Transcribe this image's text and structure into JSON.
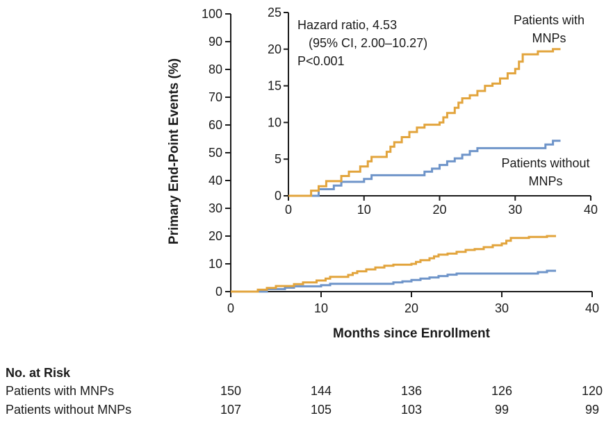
{
  "chart_data": {
    "type": "line",
    "step": true,
    "title": "",
    "xlabel": "Months since Enrollment",
    "ylabel": "Primary End-Point Events (%)",
    "grid": false,
    "colors": {
      "with_mnps": "#E2A43C",
      "without_mnps": "#6E94C9",
      "axis": "#1a1a1a"
    },
    "main_axis": {
      "xlim": [
        0,
        40
      ],
      "ylim": [
        0,
        100
      ],
      "xticks": [
        0,
        10,
        20,
        30,
        40
      ],
      "yticks": [
        0,
        10,
        20,
        30,
        40,
        50,
        60,
        70,
        80,
        90,
        100
      ]
    },
    "inset_axis": {
      "xlim": [
        0,
        40
      ],
      "ylim": [
        0,
        25
      ],
      "xticks": [
        0,
        10,
        20,
        30,
        40
      ],
      "yticks": [
        0,
        5,
        10,
        15,
        20,
        25
      ]
    },
    "annotation": {
      "line1": "Hazard ratio, 4.53",
      "line2": "(95% CI, 2.00–10.27)",
      "line3": "P<0.001"
    },
    "series": [
      {
        "name": "Patients with MNPs",
        "key": "with_mnps",
        "label_line1": "Patients with",
        "label_line2": "MNPs",
        "points": [
          [
            0,
            0
          ],
          [
            3,
            0.7
          ],
          [
            4,
            1.3
          ],
          [
            5,
            2.0
          ],
          [
            7,
            2.7
          ],
          [
            8,
            3.3
          ],
          [
            9.5,
            4.0
          ],
          [
            10.5,
            4.7
          ],
          [
            11,
            5.3
          ],
          [
            13,
            6.0
          ],
          [
            13.5,
            6.7
          ],
          [
            14,
            7.3
          ],
          [
            15,
            8.0
          ],
          [
            16,
            8.7
          ],
          [
            17,
            9.3
          ],
          [
            18,
            9.7
          ],
          [
            20,
            10.0
          ],
          [
            20.5,
            10.7
          ],
          [
            21,
            11.3
          ],
          [
            22,
            12.0
          ],
          [
            22.5,
            12.7
          ],
          [
            23,
            13.3
          ],
          [
            24,
            13.7
          ],
          [
            25,
            14.3
          ],
          [
            26,
            15.0
          ],
          [
            27,
            15.3
          ],
          [
            28,
            16.0
          ],
          [
            29,
            16.7
          ],
          [
            30,
            17.3
          ],
          [
            30.5,
            18.3
          ],
          [
            31,
            19.3
          ],
          [
            33,
            19.7
          ],
          [
            35,
            20.0
          ],
          [
            36,
            20.0
          ]
        ]
      },
      {
        "name": "Patients without MNPs",
        "key": "without_mnps",
        "label_line1": "Patients without",
        "label_line2": "MNPs",
        "points": [
          [
            0,
            0
          ],
          [
            4,
            0.9
          ],
          [
            6,
            1.4
          ],
          [
            7,
            1.9
          ],
          [
            10,
            2.3
          ],
          [
            11,
            2.8
          ],
          [
            18,
            3.3
          ],
          [
            19,
            3.7
          ],
          [
            20,
            4.2
          ],
          [
            21,
            4.7
          ],
          [
            22,
            5.1
          ],
          [
            23,
            5.6
          ],
          [
            24,
            6.1
          ],
          [
            25,
            6.5
          ],
          [
            34,
            7.0
          ],
          [
            35,
            7.5
          ],
          [
            36,
            7.5
          ]
        ]
      }
    ]
  },
  "risk_table": {
    "header": "No. at Risk",
    "rows": [
      {
        "label": "Patients with MNPs",
        "values": [
          "150",
          "144",
          "136",
          "126",
          "120"
        ]
      },
      {
        "label": "Patients without MNPs",
        "values": [
          "107",
          "105",
          "103",
          "99",
          "99"
        ]
      }
    ]
  }
}
